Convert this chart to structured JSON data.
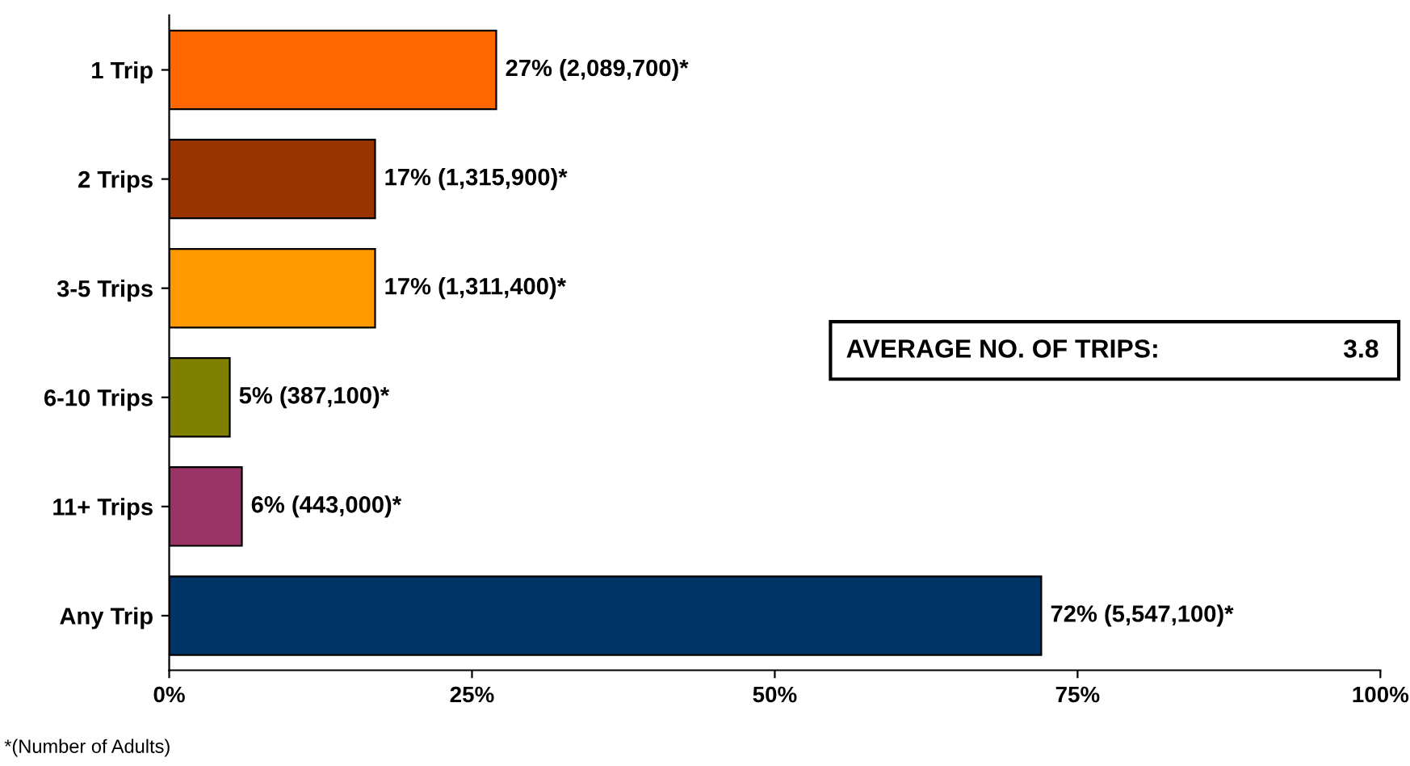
{
  "chart_data": {
    "type": "bar",
    "orientation": "horizontal",
    "categories": [
      "1 Trip",
      "2 Trips",
      "3-5 Trips",
      "6-10 Trips",
      "11+ Trips",
      "Any Trip"
    ],
    "values": [
      27,
      17,
      17,
      5,
      6,
      72
    ],
    "colors": [
      "#ff6600",
      "#993300",
      "#ff9900",
      "#808000",
      "#993366",
      "#003366"
    ],
    "value_labels": [
      "27% (2,089,700)*",
      "17% (1,315,900)*",
      "17% (1,311,400)*",
      "5% (387,100)*",
      "6% (443,000)*",
      "72% (5,547,100)*"
    ],
    "xlim": [
      0,
      100
    ],
    "xticks": [
      {
        "value": 0,
        "label": "0%"
      },
      {
        "value": 25,
        "label": "25%"
      },
      {
        "value": 50,
        "label": "50%"
      },
      {
        "value": 75,
        "label": "75%"
      },
      {
        "value": 100,
        "label": "100%"
      }
    ],
    "grid": false,
    "legend": false,
    "annotations": [
      "AVERAGE NO. OF TRIPS:",
      "3.8",
      "*(Number of Adults)"
    ]
  }
}
